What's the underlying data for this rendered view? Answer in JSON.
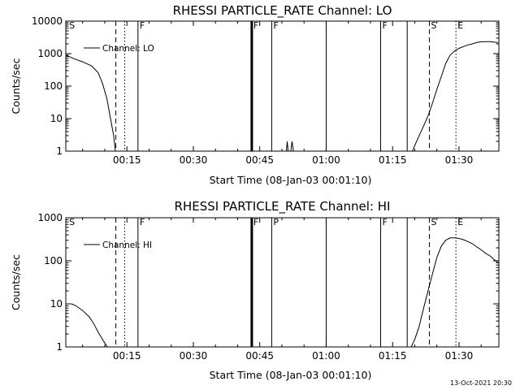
{
  "chart_data": [
    {
      "type": "line",
      "title": "RHESSI PARTICLE_RATE Channel: LO",
      "xlabel": "Start Time (08-Jan-03 00:01:10)",
      "ylabel": "Counts/sec",
      "yscale": "log",
      "ylim": [
        1,
        10000
      ],
      "xlim": [
        1.2,
        99
      ],
      "x_ticks": [
        15,
        30,
        45,
        60,
        75,
        90
      ],
      "x_tick_labels": [
        "00:15",
        "00:30",
        "00:45",
        "01:00",
        "01:15",
        "01:30"
      ],
      "y_ticks": [
        1,
        10,
        100,
        1000,
        10000
      ],
      "y_tick_labels": [
        "1",
        "10",
        "100",
        "1000",
        "10000"
      ],
      "legend": {
        "label": "Channel: LO",
        "loc": "top-left"
      },
      "markers": [
        {
          "label": "S",
          "x": 1.6,
          "style": "none"
        },
        {
          "label": "",
          "x": 12.5,
          "style": "dashed"
        },
        {
          "label": "",
          "x": 14.5,
          "style": "dotted"
        },
        {
          "label": "F",
          "x": 17.5,
          "style": "solid"
        },
        {
          "label": "F",
          "x": 43.2,
          "style": "solid-bold"
        },
        {
          "label": "F",
          "x": 47.7,
          "style": "solid"
        },
        {
          "label": "",
          "x": 60.0,
          "style": "solid"
        },
        {
          "label": "F",
          "x": 72.3,
          "style": "solid"
        },
        {
          "label": "",
          "x": 78.3,
          "style": "solid"
        },
        {
          "label": "S",
          "x": 83.3,
          "style": "dashed"
        },
        {
          "label": "E",
          "x": 89.3,
          "style": "dotted"
        },
        {
          "label": "",
          "x": 99.0,
          "style": "dashdot"
        }
      ],
      "series": [
        {
          "name": "Channel: LO",
          "segments": [
            [
              [
                1.2,
                900
              ],
              [
                3,
                700
              ],
              [
                5,
                560
              ],
              [
                7,
                420
              ],
              [
                8.5,
                260
              ],
              [
                9.5,
                120
              ],
              [
                10.5,
                40
              ],
              [
                11.3,
                10
              ],
              [
                12,
                3
              ],
              [
                12.4,
                1
              ]
            ],
            [
              [
                51,
                1
              ],
              [
                51.2,
                2
              ],
              [
                51.4,
                1
              ]
            ],
            [
              [
                52,
                1
              ],
              [
                52.3,
                2
              ],
              [
                52.6,
                1
              ]
            ],
            [
              [
                79.5,
                1
              ],
              [
                80,
                1.5
              ],
              [
                81,
                3
              ],
              [
                82,
                6
              ],
              [
                83,
                12
              ],
              [
                84,
                30
              ],
              [
                85,
                80
              ],
              [
                86,
                200
              ],
              [
                87,
                500
              ],
              [
                88,
                900
              ],
              [
                89,
                1200
              ],
              [
                90,
                1450
              ],
              [
                91,
                1650
              ],
              [
                92,
                1850
              ],
              [
                93,
                2000
              ],
              [
                94,
                2200
              ],
              [
                95,
                2300
              ],
              [
                96,
                2350
              ],
              [
                97,
                2350
              ],
              [
                98,
                2250
              ],
              [
                98.8,
                2200
              ]
            ]
          ]
        }
      ]
    },
    {
      "type": "line",
      "title": "RHESSI PARTICLE_RATE Channel: HI",
      "xlabel": "Start Time (08-Jan-03 00:01:10)",
      "ylabel": "Counts/sec",
      "yscale": "log",
      "ylim": [
        1,
        1000
      ],
      "xlim": [
        1.2,
        99
      ],
      "x_ticks": [
        15,
        30,
        45,
        60,
        75,
        90
      ],
      "x_tick_labels": [
        "00:15",
        "00:30",
        "00:45",
        "01:00",
        "01:15",
        "01:30"
      ],
      "y_ticks": [
        1,
        10,
        100,
        1000
      ],
      "y_tick_labels": [
        "1",
        "10",
        "100",
        "1000"
      ],
      "legend": {
        "label": "Channel: HI",
        "loc": "top-left"
      },
      "markers": [
        {
          "label": "S",
          "x": 1.6,
          "style": "none"
        },
        {
          "label": "",
          "x": 12.5,
          "style": "dashed"
        },
        {
          "label": "",
          "x": 14.5,
          "style": "dotted"
        },
        {
          "label": "F",
          "x": 17.5,
          "style": "solid"
        },
        {
          "label": "F",
          "x": 43.2,
          "style": "solid-bold"
        },
        {
          "label": "P",
          "x": 47.7,
          "style": "solid"
        },
        {
          "label": "",
          "x": 60.0,
          "style": "solid"
        },
        {
          "label": "F",
          "x": 72.3,
          "style": "solid"
        },
        {
          "label": "",
          "x": 78.3,
          "style": "solid"
        },
        {
          "label": "S",
          "x": 83.3,
          "style": "dashed"
        },
        {
          "label": "E",
          "x": 89.3,
          "style": "dotted"
        },
        {
          "label": "",
          "x": 99.0,
          "style": "dashdot"
        }
      ],
      "series": [
        {
          "name": "Channel: HI",
          "segments": [
            [
              [
                1.2,
                10
              ],
              [
                2.5,
                10
              ],
              [
                3.5,
                9
              ],
              [
                5,
                7
              ],
              [
                6.5,
                5
              ],
              [
                7.5,
                3.5
              ],
              [
                8.5,
                2.2
              ],
              [
                9.5,
                1.5
              ],
              [
                10.3,
                1.1
              ],
              [
                10.6,
                1
              ]
            ],
            [
              [
                79.2,
                1
              ],
              [
                80,
                1.5
              ],
              [
                81,
                3
              ],
              [
                82,
                8
              ],
              [
                83,
                20
              ],
              [
                84,
                50
              ],
              [
                85,
                120
              ],
              [
                86,
                220
              ],
              [
                87,
                300
              ],
              [
                88,
                340
              ],
              [
                89,
                340
              ],
              [
                90,
                330
              ],
              [
                91,
                310
              ],
              [
                92,
                280
              ],
              [
                93,
                250
              ],
              [
                94,
                210
              ],
              [
                95,
                180
              ],
              [
                96,
                150
              ],
              [
                97,
                130
              ],
              [
                98,
                105
              ],
              [
                98.8,
                90
              ]
            ]
          ]
        }
      ]
    }
  ],
  "footer_timestamp": "13-Oct-2021 20:30"
}
